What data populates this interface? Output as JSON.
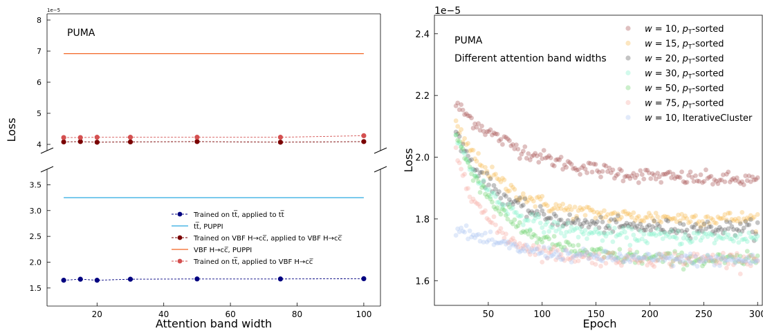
{
  "chart_data": [
    {
      "type": "line",
      "text": {
        "annotation": "PUMA",
        "xlabel": "Attention band width",
        "ylabel": "Loss",
        "offset": "1e−5"
      },
      "axis_broken": true,
      "xlim": [
        5,
        105
      ],
      "xticks": [
        20,
        40,
        60,
        80,
        100
      ],
      "upper_ylim": [
        3.8,
        8.2
      ],
      "upper_yticks": [
        4,
        5,
        6,
        7,
        8
      ],
      "lower_ylim": [
        1.15,
        3.8
      ],
      "lower_yticks": [
        1.5,
        2.0,
        2.5,
        3.0,
        3.5
      ],
      "y_scale_exponent": -5,
      "grid": false,
      "legend_position": "lower-right",
      "series": [
        {
          "name": "Trained on t̅t, applied to t̅t",
          "legend_label": "Trained on tt̅, applied to tt̅",
          "kind": "dashed-markers",
          "color": "#000080",
          "x": [
            10,
            15,
            20,
            30,
            50,
            75,
            100
          ],
          "y": [
            1.65,
            1.67,
            1.65,
            1.67,
            1.675,
            1.675,
            1.68
          ]
        },
        {
          "name": "tt̅, PUPPI",
          "legend_label": "tt̅, PUPPI",
          "kind": "solid",
          "color": "#29a9e1",
          "x": [
            10,
            100
          ],
          "y": [
            3.25,
            3.25
          ]
        },
        {
          "name": "Trained on VBF H→cc̅, applied to VBF H→cc̅",
          "legend_label": "Trained on VBF H→cc̅, applied to VBF H→cc̅",
          "kind": "dashed-markers",
          "color": "#7a0000",
          "x": [
            10,
            15,
            20,
            30,
            50,
            75,
            100
          ],
          "y": [
            4.08,
            4.09,
            4.07,
            4.08,
            4.09,
            4.07,
            4.09
          ]
        },
        {
          "name": "VBF H→cc̅, PUPPI",
          "legend_label": "VBF H→cc̅, PUPPI",
          "kind": "solid",
          "color": "#f26522",
          "x": [
            10,
            100
          ],
          "y": [
            6.92,
            6.92
          ]
        },
        {
          "name": "Trained on tt̅, applied to VBF H→cc̅",
          "legend_label": "Trained on tt̅, applied to VBF H→cc̅",
          "kind": "dashed-markers",
          "color": "#d45050",
          "x": [
            10,
            15,
            20,
            30,
            50,
            75,
            100
          ],
          "y": [
            4.22,
            4.22,
            4.23,
            4.23,
            4.23,
            4.23,
            4.28
          ]
        }
      ]
    },
    {
      "type": "scatter",
      "text": {
        "annotation_1": "PUMA",
        "annotation_2": "Different attention band widths",
        "xlabel": "Epoch",
        "ylabel": "Loss",
        "offset": "1e−5"
      },
      "xlim": [
        0,
        305
      ],
      "xticks": [
        50,
        100,
        150,
        200,
        250,
        300
      ],
      "ylim": [
        1.52,
        2.46
      ],
      "yticks": [
        1.6,
        1.8,
        2.0,
        2.2,
        2.4
      ],
      "y_scale_exponent": -5,
      "grid": false,
      "legend_position": "top-right",
      "note": "each series is a noisy exponential-decay scatter from epoch ~20 to 300",
      "series": [
        {
          "w": "10",
          "suffix": "p_T-sorted",
          "color": "#a24a4a",
          "start": 2.17,
          "end": 1.92,
          "tau": 70,
          "noise": 0.012
        },
        {
          "w": "15",
          "suffix": "p_T-sorted",
          "color": "#f5b74a",
          "start": 2.1,
          "end": 1.8,
          "tau": 45,
          "noise": 0.012
        },
        {
          "w": "20",
          "suffix": "p_T-sorted",
          "color": "#555555",
          "start": 2.08,
          "end": 1.77,
          "tau": 40,
          "noise": 0.012
        },
        {
          "w": "30",
          "suffix": "p_T-sorted",
          "color": "#7ff2c8",
          "start": 2.06,
          "end": 1.74,
          "tau": 40,
          "noise": 0.012
        },
        {
          "w": "50",
          "suffix": "p_T-sorted",
          "color": "#6ad26a",
          "start": 2.07,
          "end": 1.665,
          "tau": 45,
          "noise": 0.012
        },
        {
          "w": "75",
          "suffix": "p_T-sorted",
          "color": "#f7a9a0",
          "start": 2.02,
          "end": 1.67,
          "tau": 30,
          "noise": 0.012
        },
        {
          "w": "10",
          "suffix": "IterativeCluster",
          "color": "#a9c4f0",
          "start": 1.77,
          "end": 1.665,
          "tau": 60,
          "noise": 0.01
        }
      ]
    }
  ]
}
